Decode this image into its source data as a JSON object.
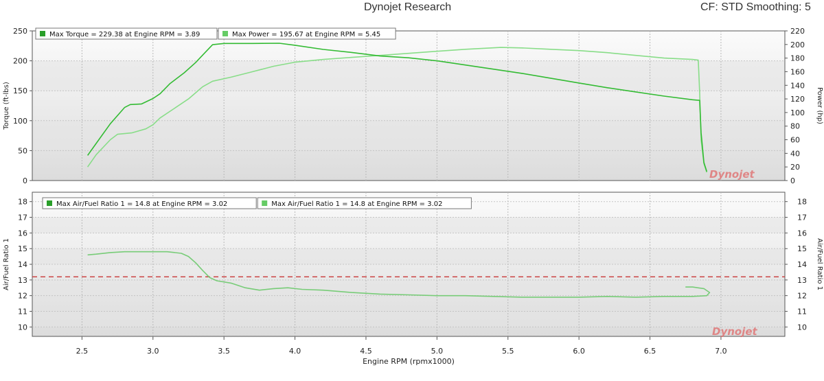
{
  "header": {
    "title": "Dynojet Research",
    "cf_smoothing": "CF: STD Smoothing: 5"
  },
  "chart_data": [
    {
      "type": "line",
      "panel": "top",
      "xlabel": "",
      "ylabel_left": "Torque (ft-lbs)",
      "ylabel_right": "Power (hp)",
      "xlim": [
        2.15,
        7.45
      ],
      "ylim_left": [
        0,
        250
      ],
      "ylim_right": [
        0,
        220
      ],
      "yticks_left": [
        0,
        50,
        100,
        150,
        200,
        250
      ],
      "yticks_right": [
        0,
        20,
        40,
        60,
        80,
        100,
        120,
        140,
        160,
        180,
        200,
        220
      ],
      "grid": true,
      "legend_position": "top-left",
      "legend": [
        "Max Torque = 229.38 at Engine RPM = 3.89",
        "Max Power = 195.67 at Engine RPM = 5.45"
      ],
      "watermark": "Dynojet",
      "series": [
        {
          "axis": "left",
          "color": "#33bb33",
          "points": [
            [
              2.54,
              42
            ],
            [
              2.6,
              62
            ],
            [
              2.7,
              95
            ],
            [
              2.8,
              122
            ],
            [
              2.84,
              127
            ],
            [
              2.92,
              128
            ],
            [
              3.0,
              137
            ],
            [
              3.05,
              145
            ],
            [
              3.12,
              162
            ],
            [
              3.22,
              180
            ],
            [
              3.3,
              197
            ],
            [
              3.36,
              212
            ],
            [
              3.42,
              227
            ],
            [
              3.5,
              229
            ],
            [
              3.7,
              229
            ],
            [
              3.89,
              229.4
            ],
            [
              4.0,
              226
            ],
            [
              4.2,
              219
            ],
            [
              4.4,
              214
            ],
            [
              4.6,
              208
            ],
            [
              4.8,
              205
            ],
            [
              5.0,
              200
            ],
            [
              5.2,
              193
            ],
            [
              5.4,
              186
            ],
            [
              5.6,
              179
            ],
            [
              5.8,
              171
            ],
            [
              6.0,
              163
            ],
            [
              6.2,
              155
            ],
            [
              6.4,
              148
            ],
            [
              6.6,
              141
            ],
            [
              6.8,
              135
            ],
            [
              6.85,
              134
            ],
            [
              6.86,
              80
            ],
            [
              6.88,
              30
            ],
            [
              6.9,
              15
            ]
          ]
        },
        {
          "axis": "right",
          "color": "#88dd88",
          "points": [
            [
              2.54,
              20
            ],
            [
              2.6,
              38
            ],
            [
              2.7,
              60
            ],
            [
              2.75,
              68
            ],
            [
              2.85,
              70
            ],
            [
              2.95,
              76
            ],
            [
              3.0,
              82
            ],
            [
              3.05,
              92
            ],
            [
              3.15,
              106
            ],
            [
              3.25,
              120
            ],
            [
              3.35,
              138
            ],
            [
              3.42,
              146
            ],
            [
              3.55,
              152
            ],
            [
              3.7,
              160
            ],
            [
              3.85,
              168
            ],
            [
              4.0,
              174
            ],
            [
              4.2,
              178
            ],
            [
              4.4,
              181
            ],
            [
              4.6,
              184
            ],
            [
              4.8,
              187
            ],
            [
              5.0,
              190
            ],
            [
              5.2,
              193
            ],
            [
              5.45,
              195.7
            ],
            [
              5.6,
              195
            ],
            [
              5.8,
              193
            ],
            [
              6.0,
              191
            ],
            [
              6.2,
              188
            ],
            [
              6.4,
              184
            ],
            [
              6.6,
              180
            ],
            [
              6.8,
              178
            ],
            [
              6.84,
              177
            ],
            [
              6.85,
              130
            ],
            [
              6.86,
              60
            ],
            [
              6.88,
              25
            ],
            [
              6.9,
              12
            ]
          ]
        }
      ]
    },
    {
      "type": "line",
      "panel": "bottom",
      "xlabel": "Engine RPM (rpmx1000)",
      "ylabel_left": "Air/Fuel Ratio 1",
      "ylabel_right": "Air/Fuel Ratio 1",
      "xlim": [
        2.15,
        7.45
      ],
      "xticks": [
        "2.5",
        "3.0",
        "3.5",
        "4.0",
        "4.5",
        "5.0",
        "5.5",
        "6.0",
        "6.5",
        "7.0"
      ],
      "ylim": [
        9.4,
        18.6
      ],
      "yticks": [
        10,
        11,
        12,
        13,
        14,
        15,
        16,
        17,
        18
      ],
      "reference_line": {
        "y": 13.2,
        "color": "#cc4444",
        "style": "dashed"
      },
      "grid": true,
      "legend_position": "top-left",
      "legend": [
        "Max Air/Fuel Ratio 1 = 14.8 at Engine RPM = 3.02",
        "Max Air/Fuel Ratio 1 = 14.8 at Engine RPM = 3.02"
      ],
      "watermark": "Dynojet",
      "series": [
        {
          "axis": "left",
          "color": "#77cc77",
          "points": [
            [
              2.54,
              14.6
            ],
            [
              2.6,
              14.65
            ],
            [
              2.7,
              14.75
            ],
            [
              2.8,
              14.8
            ],
            [
              3.02,
              14.8
            ],
            [
              3.1,
              14.8
            ],
            [
              3.2,
              14.7
            ],
            [
              3.25,
              14.5
            ],
            [
              3.3,
              14.1
            ],
            [
              3.35,
              13.6
            ],
            [
              3.4,
              13.15
            ],
            [
              3.45,
              12.95
            ],
            [
              3.55,
              12.8
            ],
            [
              3.65,
              12.5
            ],
            [
              3.75,
              12.35
            ],
            [
              3.85,
              12.45
            ],
            [
              3.95,
              12.5
            ],
            [
              4.05,
              12.4
            ],
            [
              4.2,
              12.35
            ],
            [
              4.4,
              12.2
            ],
            [
              4.6,
              12.1
            ],
            [
              4.8,
              12.05
            ],
            [
              5.0,
              12.0
            ],
            [
              5.2,
              12.0
            ],
            [
              5.4,
              11.95
            ],
            [
              5.6,
              11.9
            ],
            [
              5.8,
              11.9
            ],
            [
              6.0,
              11.9
            ],
            [
              6.2,
              11.95
            ],
            [
              6.4,
              11.9
            ],
            [
              6.6,
              11.95
            ],
            [
              6.8,
              11.95
            ],
            [
              6.9,
              12.0
            ],
            [
              6.92,
              12.2
            ],
            [
              6.88,
              12.45
            ],
            [
              6.8,
              12.55
            ],
            [
              6.75,
              12.55
            ]
          ]
        }
      ]
    }
  ]
}
